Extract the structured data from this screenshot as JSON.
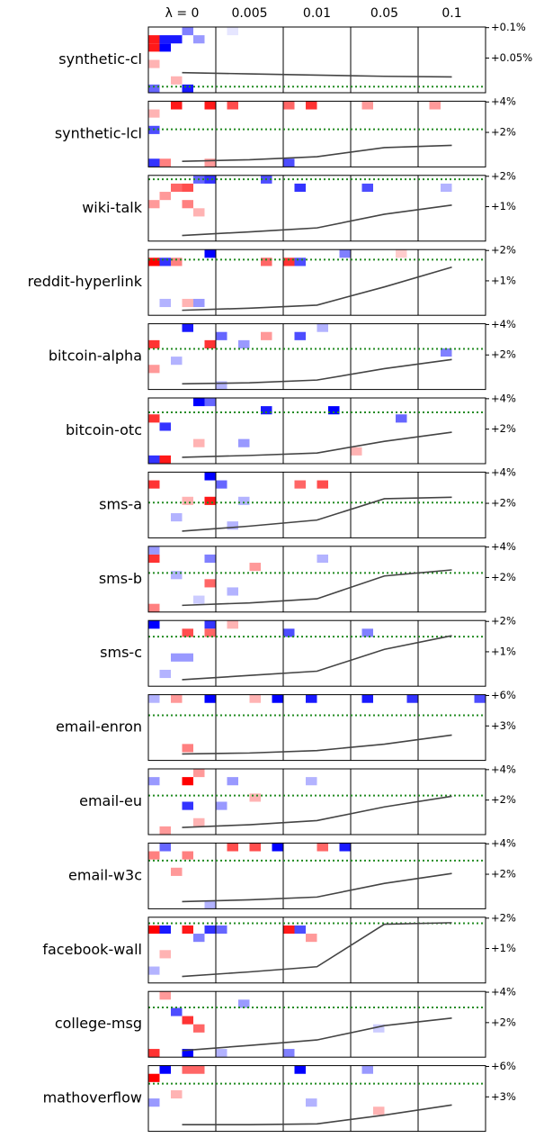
{
  "chart_data": {
    "type": "heatmap-line",
    "columns": [
      "λ = 0",
      "0.005",
      "0.01",
      "0.05",
      "0.1"
    ],
    "line_color": "#444444",
    "baseline_color": "#228b22",
    "panels": [
      {
        "title": "synthetic-cl",
        "ylim": [
          -0.007,
          0.101
        ],
        "yticks": [
          {
            "value": 0.1,
            "label": "+0.1%"
          },
          {
            "value": 0.05,
            "label": "+0.05%"
          }
        ],
        "values": [
          0.026,
          0.024,
          0.022,
          0.02,
          0.019
        ],
        "baseline": 0.003,
        "cells": [
          [
            0,
            1,
            0.9
          ],
          [
            1,
            1,
            -0.9
          ],
          [
            2,
            1,
            -0.9
          ],
          [
            0,
            2,
            0.9
          ],
          [
            1,
            2,
            -1
          ],
          [
            3,
            0,
            -0.5
          ],
          [
            4,
            1,
            -0.4
          ],
          [
            0,
            4,
            0.3
          ],
          [
            3,
            7,
            -0.9
          ],
          [
            0,
            7,
            -0.6
          ],
          [
            7,
            0,
            -0.1
          ],
          [
            2,
            6,
            0.3
          ]
        ]
      },
      {
        "title": "synthetic-lcl",
        "ylim": [
          -0.27,
          4.05
        ],
        "yticks": [
          {
            "value": 4,
            "label": "+4%"
          },
          {
            "value": 2,
            "label": "+2%"
          }
        ],
        "values": [
          0.1,
          0.2,
          0.4,
          1.0,
          1.15
        ],
        "baseline": 2.2,
        "cells": [
          [
            2,
            0,
            0.9
          ],
          [
            5,
            0,
            0.9
          ],
          [
            7,
            0,
            0.7
          ],
          [
            12,
            0,
            0.6
          ],
          [
            14,
            0,
            0.8
          ],
          [
            19,
            0,
            0.4
          ],
          [
            25,
            0,
            0.4
          ],
          [
            0,
            3,
            -0.7
          ],
          [
            0,
            7,
            -0.8
          ],
          [
            12,
            7,
            -0.7
          ],
          [
            1,
            7,
            0.5
          ],
          [
            5,
            7,
            0.4
          ],
          [
            0,
            1,
            0.3
          ]
        ]
      },
      {
        "title": "wiki-talk",
        "ylim": [
          -0.135,
          2.03
        ],
        "yticks": [
          {
            "value": 2,
            "label": "+2%"
          },
          {
            "value": 1,
            "label": "+1%"
          }
        ],
        "values": [
          0.05,
          0.17,
          0.3,
          0.75,
          1.05
        ],
        "baseline": 1.9,
        "cells": [
          [
            2,
            1,
            0.6
          ],
          [
            3,
            1,
            0.7
          ],
          [
            4,
            0,
            -0.6
          ],
          [
            5,
            0,
            -0.8
          ],
          [
            1,
            2,
            0.4
          ],
          [
            10,
            0,
            -0.7
          ],
          [
            13,
            1,
            -0.8
          ],
          [
            19,
            1,
            -0.7
          ],
          [
            26,
            1,
            -0.3
          ],
          [
            0,
            3,
            0.4
          ],
          [
            3,
            3,
            0.5
          ],
          [
            4,
            4,
            0.3
          ]
        ]
      },
      {
        "title": "reddit-hyperlink",
        "ylim": [
          -0.135,
          2.03
        ],
        "yticks": [
          {
            "value": 2,
            "label": "+2%"
          },
          {
            "value": 1,
            "label": "+1%"
          }
        ],
        "values": [
          0.03,
          0.1,
          0.2,
          0.8,
          1.45
        ],
        "baseline": 1.7,
        "cells": [
          [
            0,
            1,
            1
          ],
          [
            1,
            1,
            -0.8
          ],
          [
            2,
            1,
            0.5
          ],
          [
            5,
            0,
            -1
          ],
          [
            10,
            1,
            0.6
          ],
          [
            12,
            1,
            0.8
          ],
          [
            13,
            1,
            -0.7
          ],
          [
            17,
            0,
            -0.5
          ],
          [
            22,
            0,
            0.2
          ],
          [
            3,
            6,
            0.3
          ],
          [
            4,
            6,
            -0.4
          ],
          [
            1,
            6,
            -0.3
          ]
        ]
      },
      {
        "title": "bitcoin-alpha",
        "ylim": [
          -0.27,
          4.05
        ],
        "yticks": [
          {
            "value": 4,
            "label": "+4%"
          },
          {
            "value": 2,
            "label": "+2%"
          }
        ],
        "values": [
          0.1,
          0.17,
          0.35,
          1.1,
          1.7
        ],
        "baseline": 2.4,
        "cells": [
          [
            0,
            2,
            0.8
          ],
          [
            3,
            0,
            -0.9
          ],
          [
            5,
            2,
            0.8
          ],
          [
            6,
            1,
            -0.6
          ],
          [
            8,
            2,
            -0.4
          ],
          [
            10,
            1,
            0.4
          ],
          [
            13,
            1,
            -0.7
          ],
          [
            15,
            0,
            -0.3
          ],
          [
            26,
            3,
            -0.5
          ],
          [
            0,
            5,
            0.4
          ],
          [
            2,
            4,
            -0.3
          ],
          [
            6,
            7,
            -0.3
          ]
        ]
      },
      {
        "title": "bitcoin-otc",
        "ylim": [
          -0.27,
          4.05
        ],
        "yticks": [
          {
            "value": 4,
            "label": "+4%"
          },
          {
            "value": 2,
            "label": "+2%"
          }
        ],
        "values": [
          0.15,
          0.27,
          0.43,
          1.2,
          1.8
        ],
        "baseline": 3.1,
        "cells": [
          [
            0,
            2,
            0.8
          ],
          [
            1,
            3,
            -0.8
          ],
          [
            4,
            0,
            -1
          ],
          [
            5,
            0,
            -0.6
          ],
          [
            10,
            1,
            -0.9
          ],
          [
            16,
            1,
            -1
          ],
          [
            22,
            2,
            -0.6
          ],
          [
            1,
            7,
            0.9
          ],
          [
            0,
            7,
            -0.8
          ],
          [
            4,
            5,
            0.3
          ],
          [
            8,
            5,
            -0.4
          ],
          [
            18,
            6,
            0.3
          ]
        ]
      },
      {
        "title": "sms-a",
        "ylim": [
          -0.27,
          4.05
        ],
        "yticks": [
          {
            "value": 4,
            "label": "+4%"
          },
          {
            "value": 2,
            "label": "+2%"
          }
        ],
        "values": [
          0.17,
          0.5,
          0.9,
          2.3,
          2.4
        ],
        "baseline": 2.05,
        "cells": [
          [
            0,
            1,
            0.8
          ],
          [
            5,
            0,
            -1
          ],
          [
            6,
            1,
            -0.6
          ],
          [
            5,
            3,
            0.9
          ],
          [
            13,
            1,
            0.6
          ],
          [
            15,
            1,
            0.7
          ],
          [
            8,
            3,
            -0.3
          ],
          [
            2,
            5,
            -0.3
          ],
          [
            3,
            3,
            0.3
          ],
          [
            7,
            6,
            -0.3
          ]
        ]
      },
      {
        "title": "sms-b",
        "ylim": [
          -0.27,
          4.05
        ],
        "yticks": [
          {
            "value": 4,
            "label": "+4%"
          },
          {
            "value": 2,
            "label": "+2%"
          }
        ],
        "values": [
          0.17,
          0.33,
          0.6,
          2.1,
          2.5
        ],
        "baseline": 2.3,
        "cells": [
          [
            0,
            1,
            0.8
          ],
          [
            5,
            1,
            -0.5
          ],
          [
            5,
            4,
            0.6
          ],
          [
            0,
            0,
            -0.4
          ],
          [
            2,
            3,
            -0.3
          ],
          [
            9,
            2,
            0.4
          ],
          [
            15,
            1,
            -0.3
          ],
          [
            7,
            5,
            -0.3
          ],
          [
            0,
            7,
            0.5
          ],
          [
            4,
            6,
            -0.2
          ]
        ]
      },
      {
        "title": "sms-c",
        "ylim": [
          -0.135,
          2.03
        ],
        "yticks": [
          {
            "value": 2,
            "label": "+2%"
          },
          {
            "value": 1,
            "label": "+1%"
          }
        ],
        "values": [
          0.08,
          0.22,
          0.36,
          1.08,
          1.53
        ],
        "baseline": 1.5,
        "cells": [
          [
            0,
            0,
            -1
          ],
          [
            5,
            0,
            -0.8
          ],
          [
            3,
            1,
            0.7
          ],
          [
            5,
            1,
            0.6
          ],
          [
            12,
            1,
            -0.7
          ],
          [
            19,
            1,
            -0.5
          ],
          [
            2,
            4,
            -0.4
          ],
          [
            3,
            4,
            -0.4
          ],
          [
            1,
            6,
            -0.3
          ],
          [
            7,
            0,
            0.3
          ]
        ]
      },
      {
        "title": "email-enron",
        "ylim": [
          -0.4,
          6.08
        ],
        "yticks": [
          {
            "value": 6,
            "label": "+6%"
          },
          {
            "value": 3,
            "label": "+3%"
          }
        ],
        "values": [
          0.24,
          0.33,
          0.57,
          1.2,
          2.1
        ],
        "baseline": 4.05,
        "cells": [
          [
            5,
            0,
            -1
          ],
          [
            11,
            0,
            -1
          ],
          [
            14,
            0,
            -0.9
          ],
          [
            19,
            0,
            -0.9
          ],
          [
            23,
            0,
            -0.8
          ],
          [
            29,
            0,
            -0.7
          ],
          [
            2,
            0,
            0.4
          ],
          [
            3,
            6,
            0.5
          ],
          [
            0,
            0,
            -0.3
          ],
          [
            9,
            0,
            0.3
          ]
        ]
      },
      {
        "title": "email-eu",
        "ylim": [
          -0.27,
          4.05
        ],
        "yticks": [
          {
            "value": 4,
            "label": "+4%"
          },
          {
            "value": 2,
            "label": "+2%"
          }
        ],
        "values": [
          0.2,
          0.38,
          0.65,
          1.55,
          2.25
        ],
        "baseline": 2.3,
        "cells": [
          [
            3,
            1,
            1
          ],
          [
            4,
            0,
            0.4
          ],
          [
            0,
            1,
            -0.4
          ],
          [
            3,
            4,
            -0.8
          ],
          [
            7,
            1,
            -0.4
          ],
          [
            6,
            4,
            -0.4
          ],
          [
            9,
            3,
            0.3
          ],
          [
            4,
            6,
            0.3
          ],
          [
            1,
            7,
            0.4
          ],
          [
            14,
            1,
            -0.3
          ]
        ]
      },
      {
        "title": "email-w3c",
        "ylim": [
          -0.27,
          4.05
        ],
        "yticks": [
          {
            "value": 4,
            "label": "+4%"
          },
          {
            "value": 2,
            "label": "+2%"
          }
        ],
        "values": [
          0.2,
          0.32,
          0.5,
          1.4,
          2.05
        ],
        "baseline": 2.9,
        "cells": [
          [
            0,
            1,
            0.5
          ],
          [
            1,
            0,
            -0.6
          ],
          [
            7,
            0,
            0.7
          ],
          [
            9,
            0,
            0.7
          ],
          [
            11,
            0,
            -1
          ],
          [
            15,
            0,
            0.6
          ],
          [
            17,
            0,
            -0.9
          ],
          [
            3,
            1,
            0.5
          ],
          [
            2,
            3,
            0.4
          ],
          [
            5,
            7,
            -0.3
          ]
        ]
      },
      {
        "title": "facebook-wall",
        "ylim": [
          -0.135,
          2.03
        ],
        "yticks": [
          {
            "value": 2,
            "label": "+2%"
          },
          {
            "value": 1,
            "label": "+1%"
          }
        ],
        "values": [
          0.08,
          0.23,
          0.4,
          1.8,
          1.85
        ],
        "baseline": 1.83,
        "cells": [
          [
            0,
            1,
            1
          ],
          [
            1,
            1,
            -0.9
          ],
          [
            3,
            1,
            0.9
          ],
          [
            5,
            1,
            -0.8
          ],
          [
            6,
            1,
            -0.6
          ],
          [
            12,
            1,
            0.9
          ],
          [
            13,
            1,
            -0.7
          ],
          [
            14,
            2,
            0.4
          ],
          [
            1,
            4,
            0.3
          ],
          [
            0,
            6,
            -0.3
          ],
          [
            4,
            2,
            -0.5
          ]
        ]
      },
      {
        "title": "college-msg",
        "ylim": [
          -0.27,
          4.05
        ],
        "yticks": [
          {
            "value": 4,
            "label": "+4%"
          },
          {
            "value": 2,
            "label": "+2%"
          }
        ],
        "values": [
          0.16,
          0.5,
          0.86,
          1.8,
          2.3
        ],
        "baseline": 3,
        "cells": [
          [
            1,
            0,
            0.4
          ],
          [
            2,
            2,
            -0.7
          ],
          [
            3,
            3,
            0.8
          ],
          [
            4,
            4,
            0.6
          ],
          [
            0,
            7,
            0.8
          ],
          [
            3,
            7,
            -1
          ],
          [
            8,
            1,
            -0.4
          ],
          [
            12,
            7,
            -0.5
          ],
          [
            20,
            4,
            -0.2
          ],
          [
            6,
            7,
            -0.3
          ]
        ]
      },
      {
        "title": "mathoverflow",
        "ylim": [
          -0.4,
          6.08
        ],
        "yticks": [
          {
            "value": 6,
            "label": "+6%"
          },
          {
            "value": 3,
            "label": "+3%"
          }
        ],
        "values": [
          0.26,
          0.26,
          0.34,
          1.2,
          2.2
        ],
        "baseline": 4.3,
        "cells": [
          [
            1,
            0,
            -1
          ],
          [
            0,
            1,
            1
          ],
          [
            3,
            0,
            0.6
          ],
          [
            4,
            0,
            0.6
          ],
          [
            13,
            0,
            -1
          ],
          [
            19,
            0,
            -0.4
          ],
          [
            2,
            3,
            0.3
          ],
          [
            0,
            4,
            -0.4
          ],
          [
            20,
            5,
            0.3
          ],
          [
            14,
            4,
            -0.3
          ]
        ]
      }
    ]
  }
}
